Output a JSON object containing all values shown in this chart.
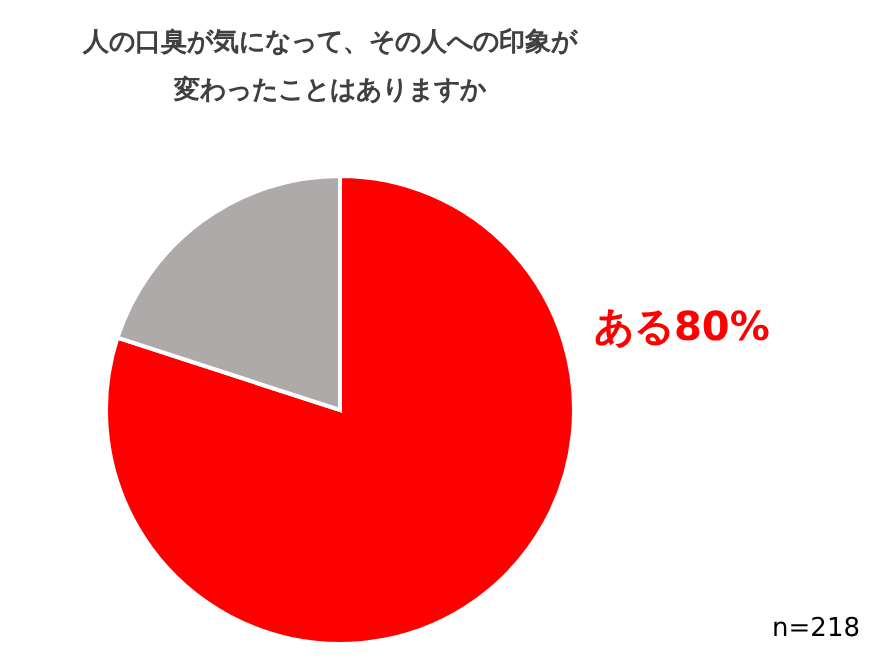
{
  "chart_data": {
    "type": "pie",
    "title": "人の口臭が気になって、その人への印象が変わったことはありますか",
    "categories": [
      "ある",
      null
    ],
    "values": [
      80,
      20
    ],
    "colors": [
      "#ff0000",
      "#aeaaaa"
    ],
    "value_labels": [
      "80%",
      null
    ],
    "annotations": [
      "n=218"
    ],
    "legend": false
  }
}
